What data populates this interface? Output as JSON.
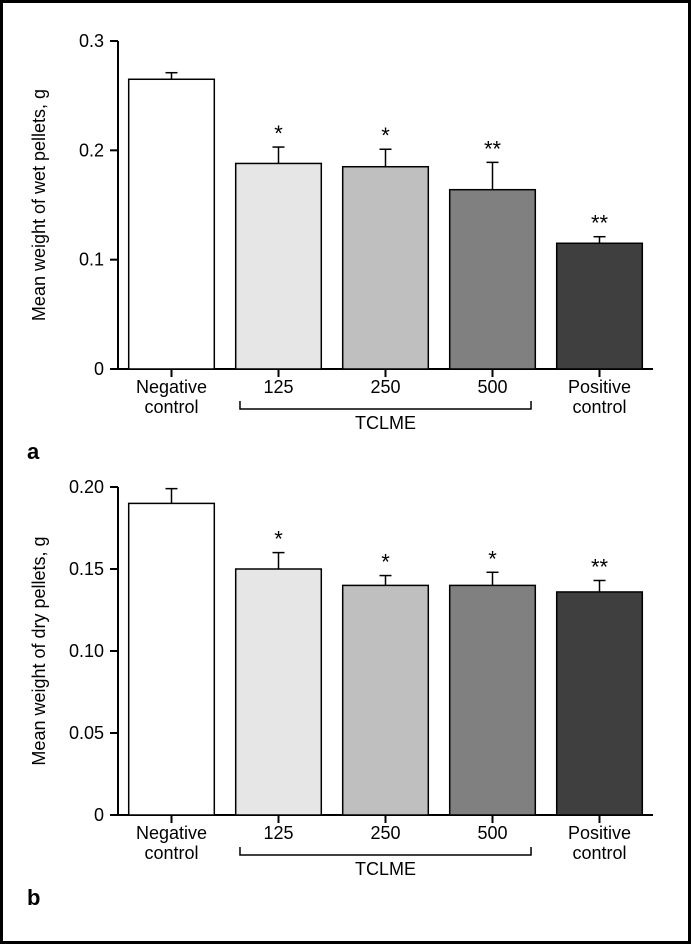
{
  "figure": {
    "background_color": "#ffffff",
    "border_color": "#000000",
    "font_family": "Arial, Helvetica, sans-serif"
  },
  "panel_a": {
    "label": "a",
    "type": "bar",
    "ylabel": "Mean weight of wet pellets, g",
    "ylim": [
      0,
      0.3
    ],
    "yticks": [
      0,
      0.1,
      0.2,
      0.3
    ],
    "ytick_labels": [
      "0",
      "0.1",
      "0.2",
      "0.3"
    ],
    "categories": [
      "Negative\ncontrol",
      "125",
      "250",
      "500",
      "Positive\ncontrol"
    ],
    "group_label": "TCLME",
    "group_indices": [
      1,
      2,
      3
    ],
    "values": [
      0.265,
      0.188,
      0.185,
      0.164,
      0.115
    ],
    "errors": [
      0.006,
      0.015,
      0.016,
      0.025,
      0.006
    ],
    "significance": [
      "",
      "*",
      "*",
      "**",
      "**"
    ],
    "bar_fill_colors": [
      "#ffffff",
      "#e6e6e6",
      "#bfbfbf",
      "#808080",
      "#3f3f3f"
    ],
    "bar_stroke_color": "#000000",
    "bar_stroke_width": 1.5,
    "axis_color": "#000000",
    "tick_fontsize": 18,
    "label_fontsize": 18,
    "sig_fontsize": 22,
    "bar_width_ratio": 0.8,
    "error_cap_width": 12
  },
  "panel_b": {
    "label": "b",
    "type": "bar",
    "ylabel": "Mean weight of dry pellets, g",
    "ylim": [
      0,
      0.2
    ],
    "yticks": [
      0,
      0.05,
      0.1,
      0.15,
      0.2
    ],
    "ytick_labels": [
      "0",
      "0.05",
      "0.10",
      "0.15",
      "0.20"
    ],
    "categories": [
      "Negative\ncontrol",
      "125",
      "250",
      "500",
      "Positive\ncontrol"
    ],
    "group_label": "TCLME",
    "group_indices": [
      1,
      2,
      3
    ],
    "values": [
      0.19,
      0.15,
      0.14,
      0.14,
      0.136
    ],
    "errors": [
      0.009,
      0.01,
      0.006,
      0.008,
      0.007
    ],
    "significance": [
      "",
      "*",
      "*",
      "*",
      "**"
    ],
    "bar_fill_colors": [
      "#ffffff",
      "#e6e6e6",
      "#bfbfbf",
      "#808080",
      "#3f3f3f"
    ],
    "bar_stroke_color": "#000000",
    "bar_stroke_width": 1.5,
    "axis_color": "#000000",
    "tick_fontsize": 18,
    "label_fontsize": 18,
    "sig_fontsize": 22,
    "bar_width_ratio": 0.8,
    "error_cap_width": 12
  }
}
